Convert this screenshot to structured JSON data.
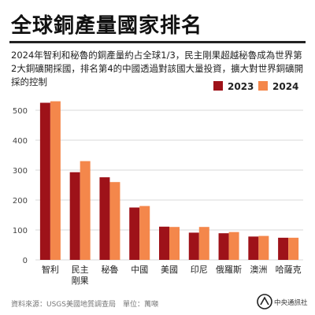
{
  "header": {
    "title": "全球銅產量國家排名",
    "subtitle": "2024年智利和秘魯的銅產量約占全球1/3，民主剛果超越秘魯成為世界第2大銅礦開採國，排名第4的中國透過對該國大量投資，擴大對世界銅礦開採的控制"
  },
  "footer": {
    "source": "資料來源：USGS美國地質調查局　單位：萬噸",
    "logo_text": "中央通訊社"
  },
  "colors": {
    "series_2023": "#9e1219",
    "series_2024": "#f4874b",
    "grid": "#d9d9d9",
    "axis_text": "#444444"
  },
  "chart_data": {
    "type": "bar",
    "categories": [
      "智利",
      "民主\n剛果",
      "秘魯",
      "中國",
      "美國",
      "印尼",
      "俄羅斯",
      "澳洲",
      "哈薩克"
    ],
    "series": [
      {
        "name": "2023",
        "values": [
          525,
          293,
          276,
          175,
          111,
          91,
          89,
          78,
          74
        ]
      },
      {
        "name": "2024",
        "values": [
          530,
          330,
          260,
          180,
          110,
          110,
          93,
          80,
          74
        ]
      }
    ],
    "ylim": [
      0,
      600
    ],
    "yticks": [
      0,
      100,
      200,
      300,
      400,
      500
    ],
    "legend": "top-right",
    "grid": true
  }
}
